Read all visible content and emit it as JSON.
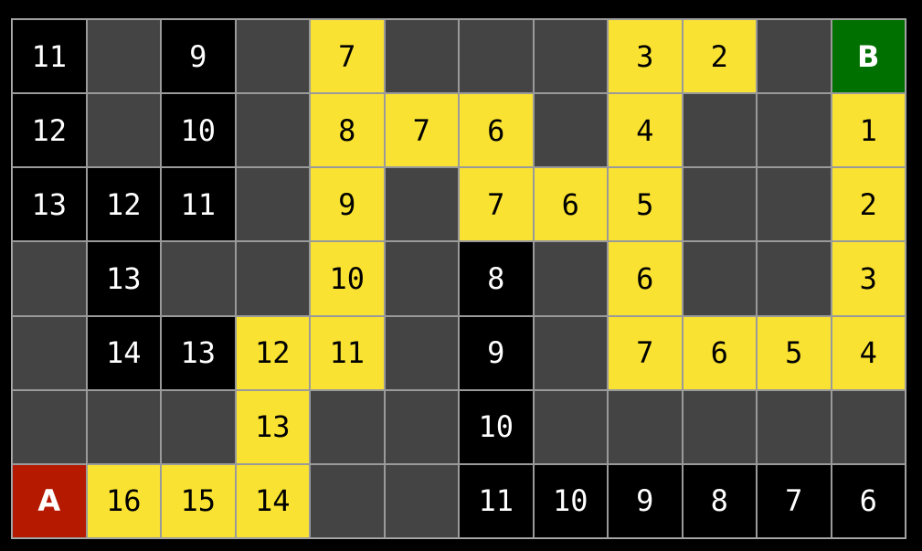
{
  "colors": {
    "wall": "#444444",
    "black": "#000000",
    "yellow": "#f9e231",
    "start": "#b51a00",
    "goal": "#007000"
  },
  "rows": [
    [
      [
        "black",
        "11"
      ],
      [
        "wall",
        ""
      ],
      [
        "black",
        "9"
      ],
      [
        "wall",
        ""
      ],
      [
        "yellow",
        "7"
      ],
      [
        "wall",
        ""
      ],
      [
        "wall",
        ""
      ],
      [
        "wall",
        ""
      ],
      [
        "yellow",
        "3"
      ],
      [
        "yellow",
        "2"
      ],
      [
        "wall",
        ""
      ],
      [
        "goal",
        "B"
      ]
    ],
    [
      [
        "black",
        "12"
      ],
      [
        "wall",
        ""
      ],
      [
        "black",
        "10"
      ],
      [
        "wall",
        ""
      ],
      [
        "yellow",
        "8"
      ],
      [
        "yellow",
        "7"
      ],
      [
        "yellow",
        "6"
      ],
      [
        "wall",
        ""
      ],
      [
        "yellow",
        "4"
      ],
      [
        "wall",
        ""
      ],
      [
        "wall",
        ""
      ],
      [
        "yellow",
        "1"
      ]
    ],
    [
      [
        "black",
        "13"
      ],
      [
        "black",
        "12"
      ],
      [
        "black",
        "11"
      ],
      [
        "wall",
        ""
      ],
      [
        "yellow",
        "9"
      ],
      [
        "wall",
        ""
      ],
      [
        "yellow",
        "7"
      ],
      [
        "yellow",
        "6"
      ],
      [
        "yellow",
        "5"
      ],
      [
        "wall",
        ""
      ],
      [
        "wall",
        ""
      ],
      [
        "yellow",
        "2"
      ]
    ],
    [
      [
        "wall",
        ""
      ],
      [
        "black",
        "13"
      ],
      [
        "wall",
        ""
      ],
      [
        "wall",
        ""
      ],
      [
        "yellow",
        "10"
      ],
      [
        "wall",
        ""
      ],
      [
        "black",
        "8"
      ],
      [
        "wall",
        ""
      ],
      [
        "yellow",
        "6"
      ],
      [
        "wall",
        ""
      ],
      [
        "wall",
        ""
      ],
      [
        "yellow",
        "3"
      ]
    ],
    [
      [
        "wall",
        ""
      ],
      [
        "black",
        "14"
      ],
      [
        "black",
        "13"
      ],
      [
        "yellow",
        "12"
      ],
      [
        "yellow",
        "11"
      ],
      [
        "wall",
        ""
      ],
      [
        "black",
        "9"
      ],
      [
        "wall",
        ""
      ],
      [
        "yellow",
        "7"
      ],
      [
        "yellow",
        "6"
      ],
      [
        "yellow",
        "5"
      ],
      [
        "yellow",
        "4"
      ]
    ],
    [
      [
        "wall",
        ""
      ],
      [
        "wall",
        ""
      ],
      [
        "wall",
        ""
      ],
      [
        "yellow",
        "13"
      ],
      [
        "wall",
        ""
      ],
      [
        "wall",
        ""
      ],
      [
        "black",
        "10"
      ],
      [
        "wall",
        ""
      ],
      [
        "wall",
        ""
      ],
      [
        "wall",
        ""
      ],
      [
        "wall",
        ""
      ],
      [
        "wall",
        ""
      ]
    ],
    [
      [
        "start",
        "A"
      ],
      [
        "yellow",
        "16"
      ],
      [
        "yellow",
        "15"
      ],
      [
        "yellow",
        "14"
      ],
      [
        "wall",
        ""
      ],
      [
        "wall",
        ""
      ],
      [
        "black",
        "11"
      ],
      [
        "black",
        "10"
      ],
      [
        "black",
        "9"
      ],
      [
        "black",
        "8"
      ],
      [
        "black",
        "7"
      ],
      [
        "black",
        "6"
      ]
    ]
  ]
}
